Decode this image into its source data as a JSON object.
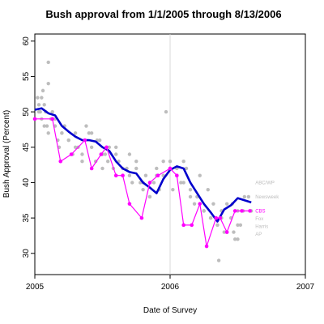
{
  "chart_data": {
    "type": "scatter",
    "title": "Bush approval from 1/1/2005 through 8/13/2006",
    "xlabel": "Date of Survey",
    "ylabel": "Bush Approval (Percent)",
    "xlim": [
      2005,
      2007
    ],
    "ylim": [
      27,
      61
    ],
    "xticks": [
      "2005",
      "2006",
      "2007"
    ],
    "yticks": [
      "30",
      "35",
      "40",
      "45",
      "50",
      "55",
      "60"
    ],
    "reference_line": {
      "x": 2006
    },
    "colors": {
      "polls": "#bdbdbd",
      "trend": "#0000cc",
      "cbs": "#ff00ff",
      "reference": "#cfcfcf",
      "axis": "#000000"
    },
    "grid": false,
    "series": [
      {
        "kind": "scatter",
        "x": [
          2005.02,
          2005.03,
          2005.04,
          2005.05,
          2005.06,
          2005.07,
          2005.08,
          2005.03,
          2005.05,
          2005.07,
          2005.09,
          2005.1,
          2005.12,
          2005.1,
          2005.13,
          2005.15,
          2005.17,
          2005.2,
          2005.18,
          2005.22,
          2005.25,
          2005.28,
          2005.3,
          2005.32,
          2005.35,
          2005.15,
          2005.2,
          2005.25,
          2005.3,
          2005.35,
          2005.4,
          2005.42,
          2005.45,
          2005.48,
          2005.5,
          2005.52,
          2005.55,
          2005.38,
          2005.42,
          2005.46,
          2005.5,
          2005.54,
          2005.58,
          2005.6,
          2005.62,
          2005.65,
          2005.68,
          2005.7,
          2005.72,
          2005.6,
          2005.65,
          2005.7,
          2005.75,
          2005.78,
          2005.8,
          2005.82,
          2005.85,
          2005.88,
          2005.9,
          2005.92,
          2005.95,
          2005.75,
          2005.8,
          2005.85,
          2005.9,
          2005.95,
          2006.0,
          2006.02,
          2006.05,
          2006.08,
          2006.1,
          2006.12,
          2006.15,
          2006.0,
          2006.05,
          2006.1,
          2006.15,
          2006.18,
          2006.2,
          2006.22,
          2006.25,
          2006.28,
          2006.3,
          2006.32,
          2006.35,
          2006.2,
          2006.25,
          2006.3,
          2006.35,
          2006.38,
          2006.4,
          2006.42,
          2006.45,
          2006.48,
          2006.5,
          2006.52,
          2006.55,
          2006.38,
          2006.42,
          2006.46,
          2006.5,
          2006.54,
          2006.58,
          2006.6,
          2006.36,
          2005.1,
          2005.97,
          2006.47,
          2006.5
        ],
        "y": [
          52,
          51,
          50,
          49,
          53,
          48,
          50,
          50,
          52,
          51,
          48,
          47,
          49,
          54,
          50,
          49,
          46,
          47,
          45,
          48,
          46,
          44,
          47,
          45,
          43,
          48,
          47,
          46,
          45,
          44,
          47,
          45,
          43,
          46,
          42,
          44,
          45,
          48,
          47,
          46,
          44,
          43,
          42,
          45,
          43,
          41,
          42,
          44,
          40,
          44,
          42,
          41,
          43,
          40,
          39,
          41,
          38,
          40,
          42,
          39,
          41,
          42,
          40,
          38,
          41,
          43,
          42,
          39,
          41,
          40,
          43,
          42,
          38,
          43,
          42,
          40,
          39,
          37,
          38,
          41,
          36,
          39,
          35,
          37,
          34,
          38,
          36,
          35,
          34,
          36,
          33,
          37,
          35,
          32,
          36,
          34,
          38,
          35,
          33,
          37,
          34,
          36,
          38,
          36,
          29,
          57,
          50,
          33,
          32
        ]
      },
      {
        "kind": "line",
        "x": [
          2005.0,
          2005.05,
          2005.1,
          2005.15,
          2005.2,
          2005.25,
          2005.3,
          2005.35,
          2005.4,
          2005.45,
          2005.5,
          2005.55,
          2005.6,
          2005.65,
          2005.7,
          2005.75,
          2005.8,
          2005.85,
          2005.9,
          2005.95,
          2006.0,
          2006.05,
          2006.1,
          2006.15,
          2006.2,
          2006.25,
          2006.3,
          2006.35,
          2006.4,
          2006.45,
          2006.5,
          2006.55,
          2006.6
        ],
        "y": [
          50.3,
          50.5,
          49.8,
          49.5,
          48.0,
          47.2,
          46.5,
          46.0,
          46.0,
          45.8,
          45.0,
          44.5,
          43.0,
          42.0,
          41.5,
          41.3,
          40.0,
          39.3,
          38.5,
          40.5,
          41.8,
          42.3,
          42.0,
          40.0,
          38.5,
          37.0,
          35.8,
          34.5,
          36.2,
          36.8,
          37.8,
          37.5,
          37.2
        ]
      },
      {
        "name": "CBS",
        "kind": "line+points",
        "x": [
          2005.0,
          2005.13,
          2005.19,
          2005.27,
          2005.37,
          2005.42,
          2005.49,
          2005.53,
          2005.6,
          2005.65,
          2005.7,
          2005.79,
          2005.85,
          2005.91,
          2006.0,
          2006.05,
          2006.1,
          2006.16,
          2006.22,
          2006.27,
          2006.34,
          2006.37,
          2006.42,
          2006.48,
          2006.53,
          2006.59
        ],
        "y": [
          49,
          49,
          43,
          44,
          46,
          42,
          44,
          45,
          41,
          41,
          37,
          35,
          40,
          41,
          42,
          41,
          34,
          34,
          37,
          31,
          35,
          35,
          33,
          36,
          36,
          36
        ]
      }
    ],
    "annotations": [
      {
        "text": "ABC/WP",
        "x": 2006.63,
        "y": 40.0,
        "color": "#bdbdbd"
      },
      {
        "text": "Newsweek",
        "x": 2006.63,
        "y": 38.0,
        "color": "#bdbdbd"
      },
      {
        "text": "CBS",
        "x": 2006.63,
        "y": 36.0,
        "color": "#ff00ff"
      },
      {
        "text": "Fox",
        "x": 2006.63,
        "y": 34.9,
        "color": "#bdbdbd"
      },
      {
        "text": "Harris",
        "x": 2006.63,
        "y": 33.8,
        "color": "#bdbdbd"
      },
      {
        "text": "AP",
        "x": 2006.63,
        "y": 32.7,
        "color": "#bdbdbd"
      }
    ]
  }
}
